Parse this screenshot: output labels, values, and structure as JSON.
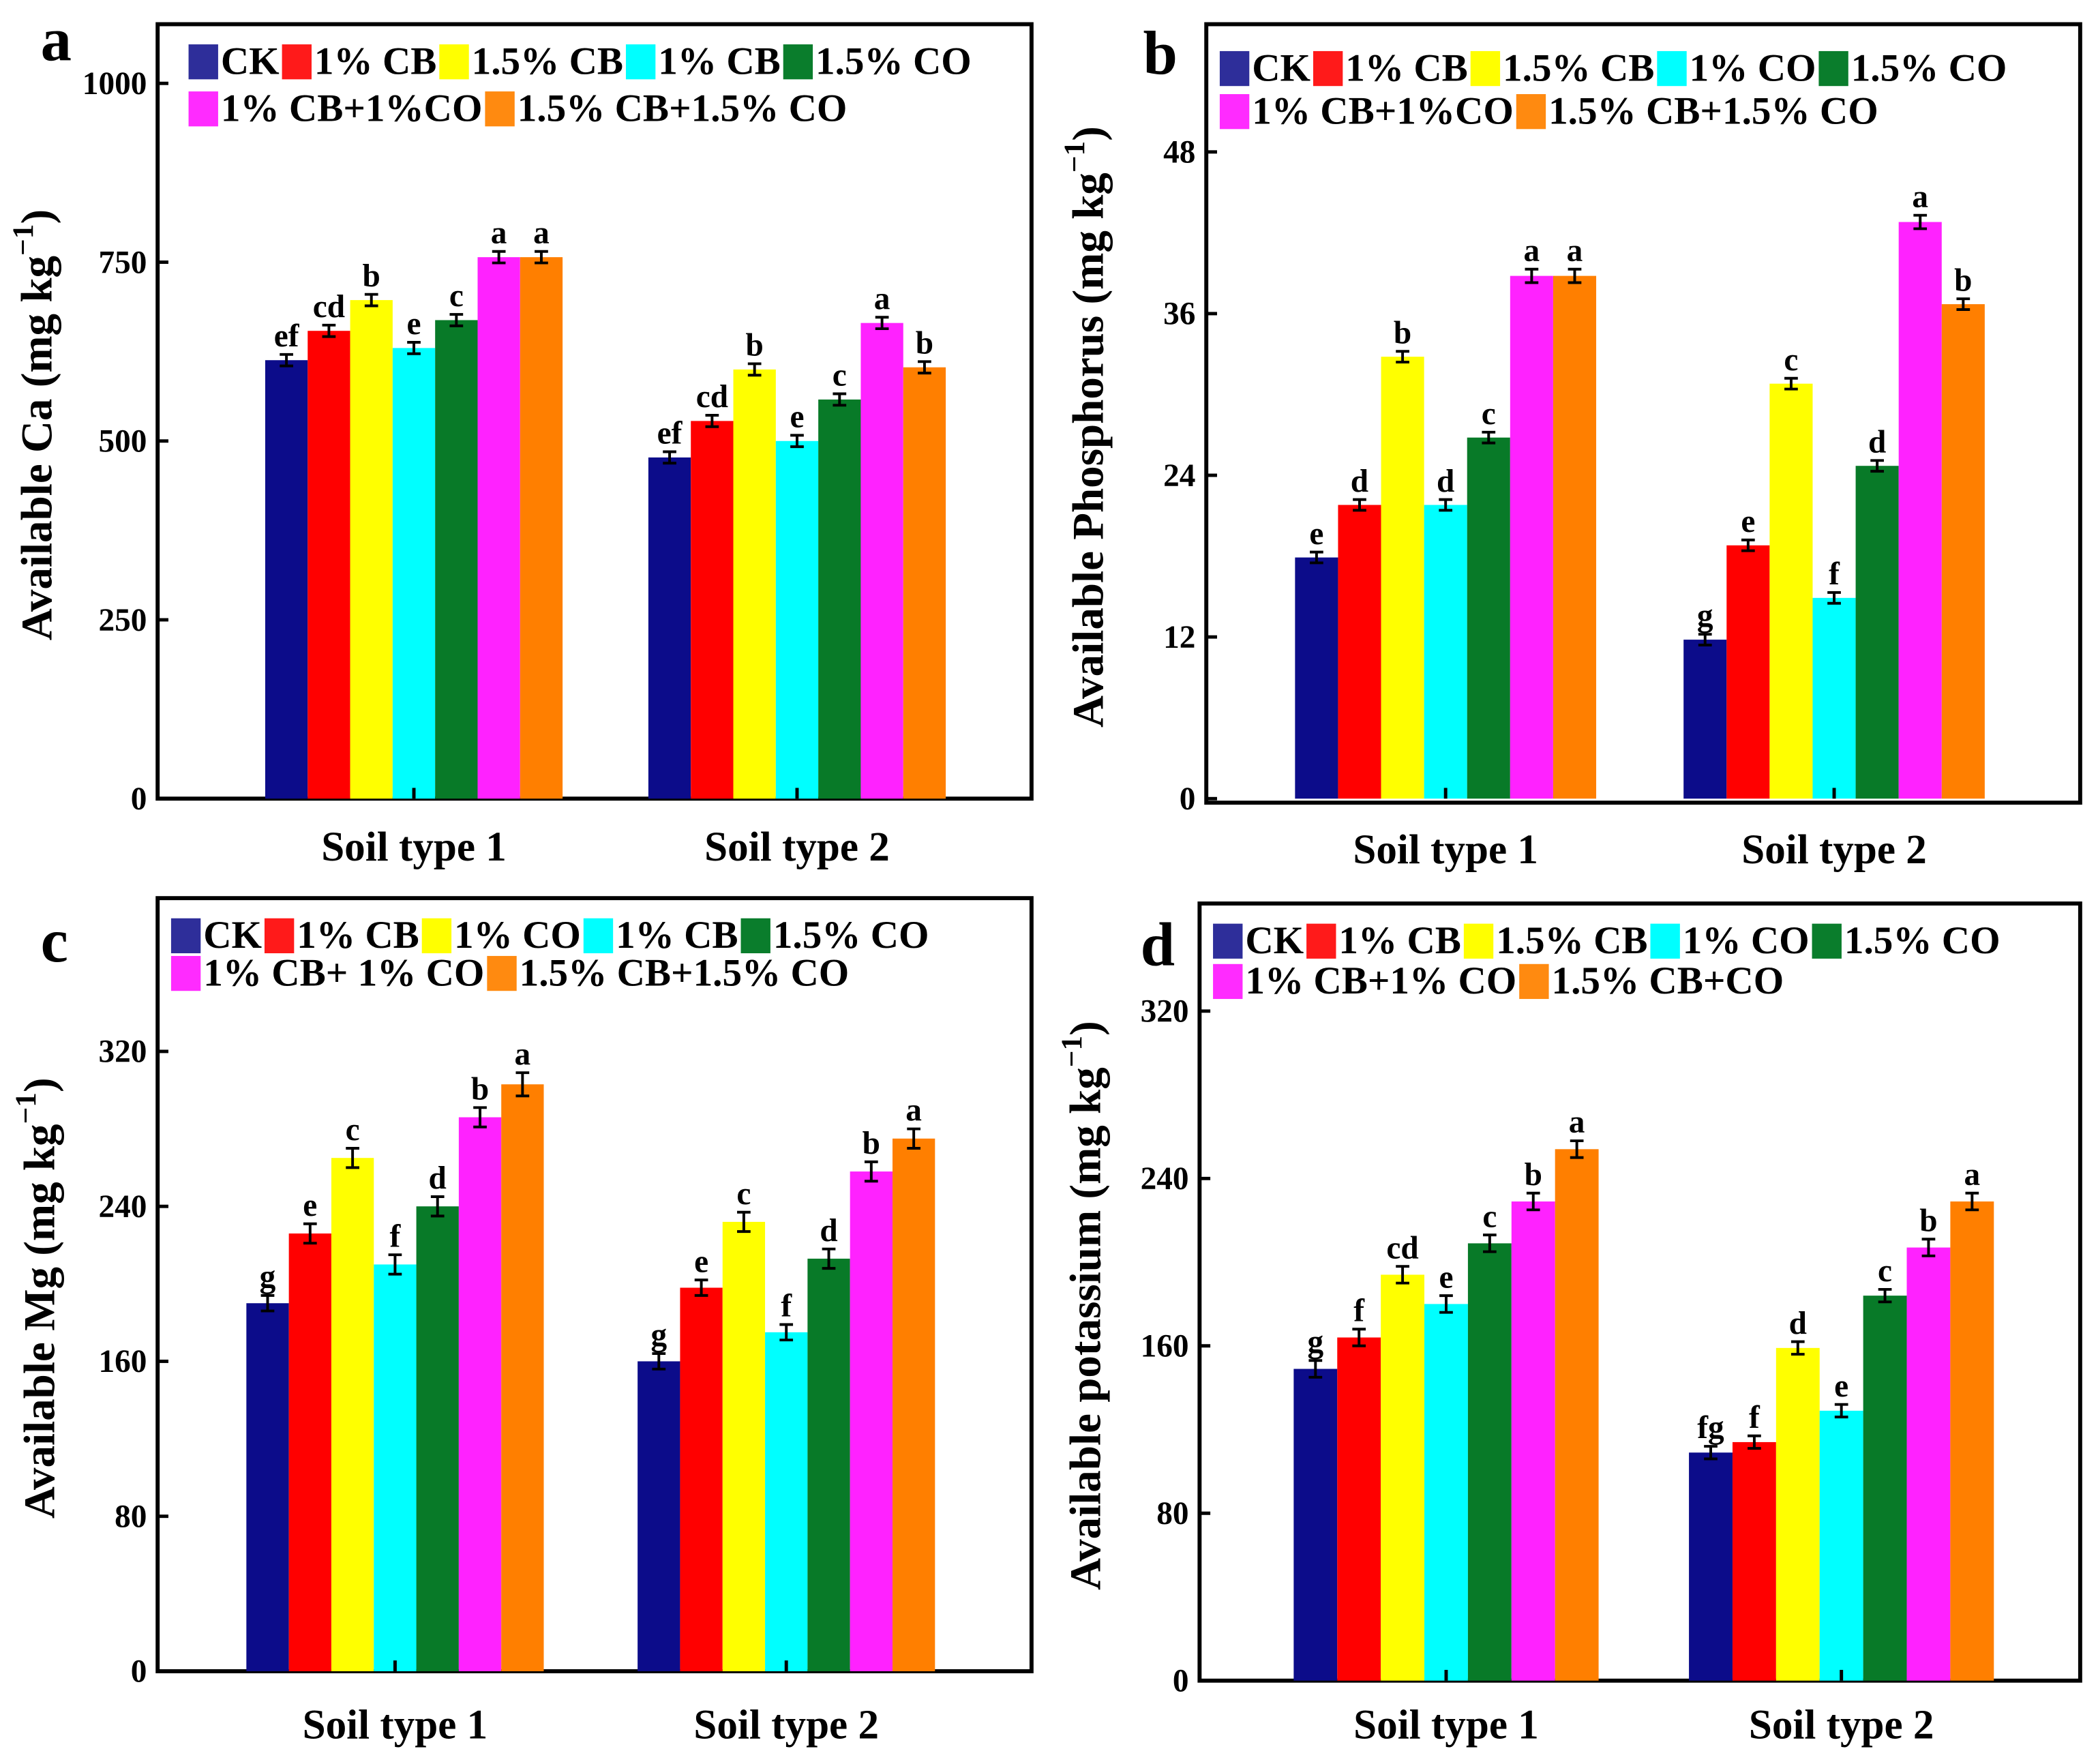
{
  "colors": [
    "#2e2e9a",
    "#ff1a1a",
    "#ffff00",
    "#00ffff",
    "#0a7d2c",
    "#ff2bff",
    "#ff8a10"
  ],
  "bar_colors": [
    "#0c0c8a",
    "#ff0000",
    "#ffff00",
    "#00ffff",
    "#087a28",
    "#ff22ff",
    "#ff7f00"
  ],
  "chart_data": [
    {
      "panel": "a",
      "type": "bar",
      "ylabel_main": "Available Ca (mg kg",
      "ylabel_sup": "−1",
      "ylabel_end": ")",
      "categories": [
        "Soil type 1",
        "Soil type 2"
      ],
      "yticks": [
        "0",
        "250",
        "500",
        "750",
        "1000"
      ],
      "ylim": [
        0,
        1000
      ],
      "legend": [
        "CK",
        "1% CB",
        "1.5% CB",
        "1% CB",
        "1.5% CO",
        "1% CB+1%CO",
        "1.5% CB+1.5% CO"
      ],
      "legend_placement": "top-left",
      "series_values": [
        [
          613,
          477
        ],
        [
          654,
          528
        ],
        [
          697,
          600
        ],
        [
          630,
          500
        ],
        [
          669,
          558
        ],
        [
          757,
          665
        ],
        [
          757,
          603
        ]
      ],
      "errors": [
        [
          8,
          8
        ],
        [
          8,
          8
        ],
        [
          8,
          8
        ],
        [
          8,
          8
        ],
        [
          8,
          8
        ],
        [
          8,
          8
        ],
        [
          8,
          8
        ]
      ],
      "letters": [
        [
          "ef",
          "ef"
        ],
        [
          "cd",
          "cd"
        ],
        [
          "b",
          "b"
        ],
        [
          "e",
          "e"
        ],
        [
          "c",
          "c"
        ],
        [
          "a",
          "a"
        ],
        [
          "a",
          "b"
        ]
      ]
    },
    {
      "panel": "b",
      "type": "bar",
      "ylabel_main": "Available Phosphorus (mg kg",
      "ylabel_sup": "−1",
      "ylabel_end": ")",
      "categories": [
        "Soil type 1",
        "Soil type 2"
      ],
      "yticks": [
        "0",
        "12",
        "24",
        "36",
        "48"
      ],
      "ylim": [
        0,
        48
      ],
      "legend": [
        "CK",
        "1% CB",
        "1.5% CB",
        "1% CO",
        "1.5% CO",
        "1% CB+1%CO",
        "1.5% CB+1.5% CO"
      ],
      "legend_placement": "top-left",
      "series_values": [
        [
          17.9,
          11.8
        ],
        [
          21.8,
          18.8
        ],
        [
          32.8,
          30.8
        ],
        [
          21.8,
          14.9
        ],
        [
          26.8,
          24.7
        ],
        [
          38.8,
          42.8
        ],
        [
          38.8,
          36.7
        ]
      ],
      "errors": [
        [
          0.4,
          0.4
        ],
        [
          0.4,
          0.4
        ],
        [
          0.4,
          0.4
        ],
        [
          0.4,
          0.4
        ],
        [
          0.4,
          0.4
        ],
        [
          0.5,
          0.5
        ],
        [
          0.5,
          0.4
        ]
      ],
      "letters": [
        [
          "e",
          "g"
        ],
        [
          "d",
          "e"
        ],
        [
          "b",
          "c"
        ],
        [
          "d",
          "f"
        ],
        [
          "c",
          "d"
        ],
        [
          "a",
          "a"
        ],
        [
          "a",
          "b"
        ]
      ]
    },
    {
      "panel": "c",
      "type": "bar",
      "ylabel_main": "Available Mg (mg kg",
      "ylabel_sup": "−1",
      "ylabel_end": ")",
      "categories": [
        "Soil type 1",
        "Soil type 2"
      ],
      "yticks": [
        "0",
        "80",
        "160",
        "240",
        "320"
      ],
      "ylim": [
        0,
        320
      ],
      "legend": [
        "CK",
        "1% CB",
        "1% CO",
        "1% CB",
        "1.5% CO",
        "1% CB+ 1% CO",
        "1.5% CB+1.5% CO"
      ],
      "legend_placement": "top-left",
      "series_values": [
        [
          190,
          160
        ],
        [
          226,
          198
        ],
        [
          265,
          232
        ],
        [
          210,
          175
        ],
        [
          240,
          213
        ],
        [
          286,
          258
        ],
        [
          303,
          275
        ]
      ],
      "errors": [
        [
          4,
          4
        ],
        [
          5,
          4
        ],
        [
          5,
          5
        ],
        [
          5,
          4
        ],
        [
          5,
          5
        ],
        [
          5,
          5
        ],
        [
          6,
          5
        ]
      ],
      "letters": [
        [
          "g",
          "g"
        ],
        [
          "e",
          "e"
        ],
        [
          "c",
          "c"
        ],
        [
          "f",
          "f"
        ],
        [
          "d",
          "d"
        ],
        [
          "b",
          "b"
        ],
        [
          "a",
          "a"
        ]
      ]
    },
    {
      "panel": "d",
      "type": "bar",
      "ylabel_main": "Available potassium (mg kg",
      "ylabel_sup": "−1",
      "ylabel_end": ")",
      "categories": [
        "Soil type 1",
        "Soil type 2"
      ],
      "yticks": [
        "0",
        "80",
        "160",
        "240",
        "320"
      ],
      "ylim": [
        0,
        320
      ],
      "legend": [
        "CK",
        "1% CB",
        "1.5% CB",
        "1% CO",
        "1.5% CO",
        "1% CB+1% CO",
        "1.5% CB+CO"
      ],
      "legend_placement": "top-left",
      "series_values": [
        [
          149,
          109
        ],
        [
          164,
          114
        ],
        [
          194,
          159
        ],
        [
          180,
          129
        ],
        [
          209,
          184
        ],
        [
          229,
          207
        ],
        [
          254,
          229
        ]
      ],
      "errors": [
        [
          4,
          3
        ],
        [
          4,
          3
        ],
        [
          4,
          3
        ],
        [
          4,
          3
        ],
        [
          4,
          3
        ],
        [
          4,
          4
        ],
        [
          4,
          4
        ]
      ],
      "letters": [
        [
          "g",
          "fg"
        ],
        [
          "f",
          "f"
        ],
        [
          "cd",
          "d"
        ],
        [
          "e",
          "e"
        ],
        [
          "c",
          "c"
        ],
        [
          "b",
          "b"
        ],
        [
          "a",
          "a"
        ]
      ]
    }
  ]
}
